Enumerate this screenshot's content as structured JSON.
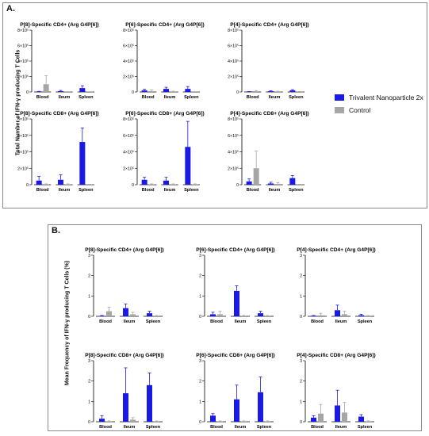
{
  "panelA": {
    "label": "A.",
    "ylabel": "Total Number of IFN-γ producing T Cells"
  },
  "panelB": {
    "label": "B.",
    "ylabel": "Mean Frequency of IFN-γ producing T Cells (%)"
  },
  "legend": {
    "items": [
      {
        "name": "Trivalent Nanoparticle 2x",
        "color": "#1a1ae6"
      },
      {
        "name": "Control",
        "color": "#a6a6a6"
      }
    ]
  },
  "colors": {
    "treat": "#1a1ae6",
    "control": "#a6a6a6"
  },
  "chart_data": [
    {
      "type": "bar",
      "panel": "A",
      "title": "P[8]-Specific CD4+ (Arg G4P[6])",
      "categories": [
        "Blood",
        "Ileum",
        "Spleen"
      ],
      "ylim": [
        0,
        800000
      ],
      "yticks": [
        "0",
        "2×10⁵",
        "4×10⁵",
        "6×10⁵",
        "8×10⁵"
      ],
      "series": [
        {
          "name": "Trivalent Nanoparticle 2x",
          "values": [
            5000,
            10000,
            50000
          ],
          "errors": [
            3000,
            10000,
            30000
          ]
        },
        {
          "name": "Control",
          "values": [
            100000,
            2000,
            2000
          ],
          "errors": [
            110000,
            2000,
            2000
          ]
        }
      ]
    },
    {
      "type": "bar",
      "panel": "A",
      "title": "P[6]-Specific CD4+ (Arg G4P[6])",
      "categories": [
        "Blood",
        "Ileum",
        "Spleen"
      ],
      "ylim": [
        0,
        800000
      ],
      "yticks": [
        "0",
        "2×10⁵",
        "4×10⁵",
        "6×10⁵",
        "8×10⁵"
      ],
      "series": [
        {
          "name": "Trivalent Nanoparticle 2x",
          "values": [
            20000,
            40000,
            40000
          ],
          "errors": [
            15000,
            20000,
            30000
          ]
        },
        {
          "name": "Control",
          "values": [
            10000,
            5000,
            2000
          ],
          "errors": [
            15000,
            5000,
            2000
          ]
        }
      ]
    },
    {
      "type": "bar",
      "panel": "A",
      "title": "P[4]-Specific CD4+ (Arg G4P[6])",
      "categories": [
        "Blood",
        "Ileum",
        "Spleen"
      ],
      "ylim": [
        0,
        800000
      ],
      "yticks": [
        "0",
        "2×10⁵",
        "4×10⁵",
        "6×10⁵",
        "8×10⁵"
      ],
      "series": [
        {
          "name": "Trivalent Nanoparticle 2x",
          "values": [
            3000,
            10000,
            20000
          ],
          "errors": [
            3000,
            5000,
            10000
          ]
        },
        {
          "name": "Control",
          "values": [
            10000,
            5000,
            3000
          ],
          "errors": [
            8000,
            5000,
            3000
          ]
        }
      ]
    },
    {
      "type": "bar",
      "panel": "A",
      "title": "P[8]-Specific CD8+ (Arg G4P[6])",
      "categories": [
        "Blood",
        "Ileum",
        "Spleen"
      ],
      "ylim": [
        0,
        800000
      ],
      "yticks": [
        "0",
        "2×10⁵",
        "4×10⁵",
        "6×10⁵",
        "8×10⁵"
      ],
      "series": [
        {
          "name": "Trivalent Nanoparticle 2x",
          "values": [
            50000,
            60000,
            520000
          ],
          "errors": [
            50000,
            60000,
            170000
          ]
        },
        {
          "name": "Control",
          "values": [
            5000,
            5000,
            3000
          ],
          "errors": [
            5000,
            5000,
            3000
          ]
        }
      ]
    },
    {
      "type": "bar",
      "panel": "A",
      "title": "P[6]-Specific CD8+ (Arg G4P[6])",
      "categories": [
        "Blood",
        "Ileum",
        "Spleen"
      ],
      "ylim": [
        0,
        800000
      ],
      "yticks": [
        "0",
        "2×10⁵",
        "4×10⁵",
        "6×10⁵",
        "8×10⁵"
      ],
      "series": [
        {
          "name": "Trivalent Nanoparticle 2x",
          "values": [
            60000,
            50000,
            460000
          ],
          "errors": [
            30000,
            40000,
            310000
          ]
        },
        {
          "name": "Control",
          "values": [
            5000,
            5000,
            5000
          ],
          "errors": [
            5000,
            5000,
            5000
          ]
        }
      ]
    },
    {
      "type": "bar",
      "panel": "A",
      "title": "P[4]-Specific CD8+ (Arg G4P[6])",
      "categories": [
        "Blood",
        "Ileum",
        "Spleen"
      ],
      "ylim": [
        0,
        800000
      ],
      "yticks": [
        "0",
        "2×10⁵",
        "4×10⁵",
        "6×10⁵",
        "8×10⁵"
      ],
      "series": [
        {
          "name": "Trivalent Nanoparticle 2x",
          "values": [
            40000,
            15000,
            80000
          ],
          "errors": [
            30000,
            15000,
            30000
          ]
        },
        {
          "name": "Control",
          "values": [
            200000,
            10000,
            3000
          ],
          "errors": [
            210000,
            15000,
            3000
          ]
        }
      ]
    },
    {
      "type": "bar",
      "panel": "B",
      "title": "P[8]-Specific CD4+ (Arg G4P[6])",
      "categories": [
        "Blood",
        "Ileum",
        "Spleen"
      ],
      "ylim": [
        0,
        3
      ],
      "yticks": [
        "0",
        "1",
        "2",
        "3"
      ],
      "series": [
        {
          "name": "Trivalent Nanoparticle 2x",
          "values": [
            0.02,
            0.4,
            0.15
          ],
          "errors": [
            0.02,
            0.2,
            0.1
          ]
        },
        {
          "name": "Control",
          "values": [
            0.25,
            0.1,
            0.02
          ],
          "errors": [
            0.2,
            0.1,
            0.02
          ]
        }
      ]
    },
    {
      "type": "bar",
      "panel": "B",
      "title": "P[6]-Specific CD4+ (Arg G4P[6])",
      "categories": [
        "Blood",
        "Ileum",
        "Spleen"
      ],
      "ylim": [
        0,
        3
      ],
      "yticks": [
        "0",
        "1",
        "2",
        "3"
      ],
      "series": [
        {
          "name": "Trivalent Nanoparticle 2x",
          "values": [
            0.1,
            1.25,
            0.15
          ],
          "errors": [
            0.1,
            0.25,
            0.1
          ]
        },
        {
          "name": "Control",
          "values": [
            0.1,
            0.02,
            0.02
          ],
          "errors": [
            0.15,
            0.02,
            0.02
          ]
        }
      ]
    },
    {
      "type": "bar",
      "panel": "B",
      "title": "P[4]-Specific CD4+ (Arg G4P[6])",
      "categories": [
        "Blood",
        "Ileum",
        "Spleen"
      ],
      "ylim": [
        0,
        3
      ],
      "yticks": [
        "0",
        "1",
        "2",
        "3"
      ],
      "series": [
        {
          "name": "Trivalent Nanoparticle 2x",
          "values": [
            0.02,
            0.3,
            0.05
          ],
          "errors": [
            0.02,
            0.25,
            0.05
          ]
        },
        {
          "name": "Control",
          "values": [
            0.05,
            0.1,
            0.02
          ],
          "errors": [
            0.1,
            0.15,
            0.02
          ]
        }
      ]
    },
    {
      "type": "bar",
      "panel": "B",
      "title": "P[8]-Specific CD8+ (Arg G4P[6])",
      "categories": [
        "Blood",
        "Ileum",
        "Spleen"
      ],
      "ylim": [
        0,
        3
      ],
      "yticks": [
        "0",
        "1",
        "2",
        "3"
      ],
      "series": [
        {
          "name": "Trivalent Nanoparticle 2x",
          "values": [
            0.15,
            1.4,
            1.8
          ],
          "errors": [
            0.15,
            1.25,
            0.6
          ]
        },
        {
          "name": "Control",
          "values": [
            0.02,
            0.1,
            0.02
          ],
          "errors": [
            0.02,
            0.1,
            0.02
          ]
        }
      ]
    },
    {
      "type": "bar",
      "panel": "B",
      "title": "P[6]-Specific CD8+ (Arg G4P[6])",
      "categories": [
        "Blood",
        "Ileum",
        "Spleen"
      ],
      "ylim": [
        0,
        3
      ],
      "yticks": [
        "0",
        "1",
        "2",
        "3"
      ],
      "series": [
        {
          "name": "Trivalent Nanoparticle 2x",
          "values": [
            0.3,
            1.1,
            1.45
          ],
          "errors": [
            0.1,
            0.7,
            0.75
          ]
        },
        {
          "name": "Control",
          "values": [
            0.02,
            0.02,
            0.02
          ],
          "errors": [
            0.02,
            0.02,
            0.02
          ]
        }
      ]
    },
    {
      "type": "bar",
      "panel": "B",
      "title": "P[4]-Specific CD8+ (Arg G4P[6])",
      "categories": [
        "Blood",
        "Ileum",
        "Spleen"
      ],
      "ylim": [
        0,
        3
      ],
      "yticks": [
        "0",
        "1",
        "2",
        "3"
      ],
      "series": [
        {
          "name": "Trivalent Nanoparticle 2x",
          "values": [
            0.2,
            0.8,
            0.25
          ],
          "errors": [
            0.1,
            0.75,
            0.1
          ]
        },
        {
          "name": "Control",
          "values": [
            0.4,
            0.45,
            0.02
          ],
          "errors": [
            0.45,
            0.5,
            0.02
          ]
        }
      ]
    }
  ]
}
